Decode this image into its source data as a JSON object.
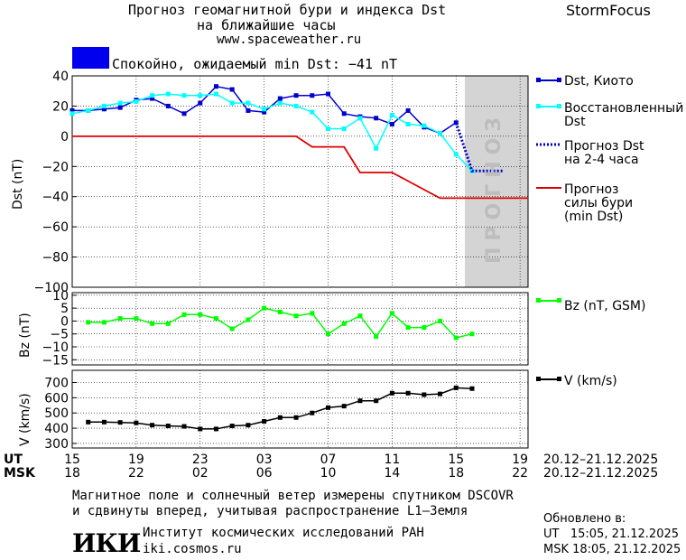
{
  "header": {
    "title_line1": "Прогноз геомагнитной бури и индекса Dst",
    "title_line2": "на ближайшие часы",
    "url": "www.spaceweather.ru",
    "brand": "StormFocus",
    "status_text": "Спокойно, ожидаемый min Dst: −41 nT",
    "status_color": "#0000ee"
  },
  "chart_data": [
    {
      "type": "line",
      "ylabel": "Dst (nT)",
      "ylim": [
        -100,
        40
      ],
      "yticks": [
        40,
        20,
        0,
        -20,
        -40,
        -60,
        -80,
        -100
      ],
      "forecast_band_label": "ПРОГНОЗ",
      "series": [
        {
          "name": "Dst, Киото",
          "color": "#0000cc",
          "x": [
            0,
            1,
            2,
            3,
            4,
            5,
            6,
            7,
            8,
            9,
            10,
            11,
            12,
            13,
            14,
            15,
            16,
            17,
            18,
            19,
            20,
            21,
            22,
            23,
            24
          ],
          "values": [
            17,
            17,
            18,
            19,
            24,
            25,
            20,
            15,
            22,
            33,
            31,
            17,
            16,
            25,
            27,
            27,
            28,
            15,
            13,
            12,
            8,
            17,
            6,
            2,
            9
          ]
        },
        {
          "name": "Восстановленный Dst",
          "color": "#00ffff",
          "x": [
            0,
            1,
            2,
            3,
            4,
            5,
            6,
            7,
            8,
            9,
            10,
            11,
            12,
            13,
            14,
            15,
            16,
            17,
            18,
            19,
            20,
            21,
            22,
            23,
            24,
            25
          ],
          "values": [
            15,
            17,
            20,
            22,
            23,
            27,
            28,
            27,
            27,
            28,
            22,
            22,
            18,
            22,
            20,
            16,
            5,
            5,
            12,
            -8,
            14,
            8,
            7,
            2,
            -12,
            -23
          ]
        },
        {
          "name": "Прогноз Dst на 2-4 часа",
          "color": "#0000cc",
          "x": [
            24,
            25,
            27
          ],
          "values": [
            9,
            -23,
            -23
          ]
        },
        {
          "name": "Прогноз силы бури (min Dst)",
          "color": "#dd0000",
          "x": [
            0,
            14,
            15,
            17,
            18,
            20,
            23,
            28.5
          ],
          "values": [
            0,
            0,
            -7,
            -7,
            -24,
            -24,
            -41,
            -41
          ]
        }
      ]
    },
    {
      "type": "line",
      "ylabel": "Bz (nT)",
      "ylim": [
        -17,
        11
      ],
      "yticks": [
        10,
        5,
        0,
        -5,
        -10,
        -15
      ],
      "series": [
        {
          "name": "Bz (nT, GSM)",
          "color": "#00ff00",
          "x": [
            1,
            2,
            3,
            4,
            5,
            6,
            7,
            8,
            9,
            10,
            11,
            12,
            13,
            14,
            15,
            16,
            17,
            18,
            19,
            20,
            21,
            22,
            23,
            24,
            25
          ],
          "values": [
            -0.5,
            -0.5,
            1,
            1,
            -1,
            -1,
            2.5,
            2.5,
            1,
            -3,
            0.5,
            5,
            3.5,
            2,
            3,
            -5,
            -1,
            2,
            -6,
            3,
            -2.5,
            -2.5,
            0,
            -6.5,
            -5
          ]
        }
      ]
    },
    {
      "type": "line",
      "ylabel": "V (km/s)",
      "ylim": [
        270,
        780
      ],
      "yticks": [
        700,
        600,
        500,
        400,
        300
      ],
      "series": [
        {
          "name": "V (km/s)",
          "color": "#000000",
          "x": [
            1,
            2,
            3,
            4,
            5,
            6,
            7,
            8,
            9,
            10,
            11,
            12,
            13,
            14,
            15,
            16,
            17,
            18,
            19,
            20,
            21,
            22,
            23,
            24,
            25
          ],
          "values": [
            440,
            440,
            438,
            435,
            420,
            415,
            412,
            395,
            395,
            415,
            420,
            445,
            470,
            470,
            500,
            535,
            545,
            580,
            580,
            630,
            630,
            620,
            625,
            665,
            660
          ]
        }
      ]
    }
  ],
  "time_axis": {
    "ut_label": "UT",
    "msk_label": "MSK",
    "ut_ticks": [
      "15",
      "19",
      "23",
      "03",
      "07",
      "11",
      "15",
      "19"
    ],
    "msk_ticks": [
      "18",
      "22",
      "02",
      "06",
      "10",
      "14",
      "18",
      "22"
    ],
    "ut_range": "20.12–21.12.2025",
    "msk_range": "20.12–21.12.2025"
  },
  "legend": {
    "dst_kyoto": "Dst, Киото",
    "restored_1": "Восстановленный",
    "restored_2": "Dst",
    "forecast_1": "Прогноз Dst",
    "forecast_2": "на 2-4 часа",
    "storm_1": "Прогноз",
    "storm_2": "силы бури",
    "storm_3": "(min Dst)",
    "bz": "Bz (nT, GSM)",
    "v": "V (km/s)"
  },
  "footer": {
    "note_line1": "Магнитное поле и солнечный ветер измерены спутником DSCOVR",
    "note_line2": "и сдвинуты вперед, учитывая распространение L1–Земля",
    "institute_logo": "ИКИ",
    "institute_name": "Институт космических исследований РАН",
    "institute_url": "iki.cosmos.ru",
    "updated_label": "Обновлено в:",
    "updated_ut": "UT   15:05, 21.12.2025",
    "updated_msk": "MSK 18:05, 21.12.2025"
  }
}
